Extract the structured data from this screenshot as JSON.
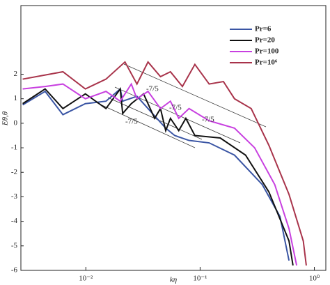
{
  "chart_data": {
    "type": "line",
    "xlabel": "kη",
    "ylabel": "Eθ,θ",
    "xscale": "log",
    "xlim": [
      0.0027,
      1.26
    ],
    "ylim": [
      -6,
      4.8
    ],
    "xticks": [
      {
        "value": 0.01,
        "label": "10⁻²"
      },
      {
        "value": 0.1,
        "label": "10⁻¹"
      },
      {
        "value": 1,
        "label": "10⁰"
      }
    ],
    "yticks": [
      -6,
      -5,
      -4,
      -3,
      -2,
      -1,
      0,
      1,
      2
    ],
    "legend": "upper right",
    "annotations": [
      "-7/5",
      "-7/5",
      "-7/5",
      "-7/5"
    ],
    "series": [
      {
        "name": "Pr=6",
        "color": "#3a55a4",
        "x": [
          0.0028,
          0.0044,
          0.0063,
          0.0099,
          0.015,
          0.02,
          0.021,
          0.028,
          0.04,
          0.05,
          0.06,
          0.08,
          0.12,
          0.2,
          0.35,
          0.5,
          0.6
        ],
        "values": [
          0.75,
          1.3,
          0.35,
          0.8,
          0.9,
          1.4,
          0.9,
          1.1,
          0.3,
          -0.2,
          -0.5,
          -0.7,
          -0.8,
          -1.3,
          -2.5,
          -3.8,
          -5.6
        ]
      },
      {
        "name": "Pr=20",
        "color": "#111111",
        "x": [
          0.0028,
          0.0044,
          0.0063,
          0.0099,
          0.015,
          0.02,
          0.021,
          0.025,
          0.032,
          0.04,
          0.045,
          0.05,
          0.055,
          0.065,
          0.075,
          0.09,
          0.15,
          0.25,
          0.4,
          0.6,
          0.65
        ],
        "values": [
          0.8,
          1.4,
          0.6,
          1.2,
          0.6,
          1.4,
          0.4,
          0.8,
          1.2,
          0.2,
          0.6,
          -0.3,
          0.2,
          -0.3,
          0.2,
          -0.5,
          -0.6,
          -1.3,
          -2.8,
          -4.8,
          -5.8
        ]
      },
      {
        "name": "Pr=100",
        "color": "#c840e0",
        "x": [
          0.0028,
          0.0044,
          0.0063,
          0.0099,
          0.015,
          0.02,
          0.025,
          0.028,
          0.035,
          0.045,
          0.055,
          0.065,
          0.08,
          0.12,
          0.2,
          0.3,
          0.45,
          0.6,
          0.7
        ],
        "values": [
          1.4,
          1.5,
          1.6,
          1.0,
          1.3,
          0.9,
          1.6,
          1.0,
          1.3,
          0.6,
          0.9,
          0.2,
          0.6,
          0.1,
          -0.2,
          -1.0,
          -2.5,
          -4.3,
          -5.8
        ]
      },
      {
        "name": "Pr=10⁶",
        "color": "#a8334a",
        "x": [
          0.0028,
          0.0063,
          0.0099,
          0.015,
          0.022,
          0.028,
          0.035,
          0.045,
          0.055,
          0.07,
          0.09,
          0.12,
          0.16,
          0.2,
          0.28,
          0.4,
          0.6,
          0.8,
          0.85
        ],
        "values": [
          1.8,
          2.1,
          1.4,
          1.8,
          2.5,
          1.6,
          2.5,
          1.9,
          2.1,
          1.5,
          2.4,
          1.6,
          1.7,
          1.0,
          0.6,
          -0.9,
          -2.9,
          -4.8,
          -5.8
        ]
      }
    ]
  }
}
